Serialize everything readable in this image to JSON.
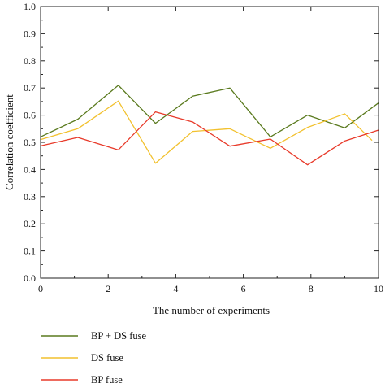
{
  "colors": {
    "axis": "#222222",
    "background": "#ffffff"
  },
  "chart_data": {
    "type": "line",
    "xlabel": "The number of experiments",
    "ylabel": "Correlation coefficient",
    "xlim": [
      0,
      10
    ],
    "ylim": [
      0.0,
      1.0
    ],
    "x_ticks": [
      "0",
      "2",
      "4",
      "6",
      "8",
      "10"
    ],
    "y_ticks": [
      "0.0",
      "0.1",
      "0.2",
      "0.3",
      "0.4",
      "0.5",
      "0.6",
      "0.7",
      "0.8",
      "0.9",
      "1.0"
    ],
    "grid": false,
    "legend_position": "bottom-left, below the plot",
    "series": [
      {
        "name": "BP + DS fuse",
        "color": "#5a7a1e",
        "x": [
          0,
          1.1,
          2.3,
          3.4,
          4.5,
          5.6,
          6.8,
          7.9,
          9.0,
          10.0
        ],
        "values": [
          0.52,
          0.585,
          0.71,
          0.57,
          0.67,
          0.7,
          0.52,
          0.6,
          0.553,
          0.645
        ]
      },
      {
        "name": "DS fuse",
        "color": "#f2c12e",
        "x": [
          0,
          1.1,
          2.3,
          3.4,
          4.5,
          5.6,
          6.8,
          7.9,
          9.0,
          9.8
        ],
        "values": [
          0.51,
          0.55,
          0.652,
          0.423,
          0.54,
          0.55,
          0.478,
          0.555,
          0.605,
          0.508
        ]
      },
      {
        "name": "BP fuse",
        "color": "#e83a2a",
        "x": [
          0,
          1.1,
          2.3,
          3.4,
          4.5,
          5.6,
          6.8,
          7.9,
          9.0,
          10.0
        ],
        "values": [
          0.487,
          0.518,
          0.472,
          0.612,
          0.575,
          0.486,
          0.512,
          0.417,
          0.505,
          0.545
        ]
      }
    ]
  }
}
